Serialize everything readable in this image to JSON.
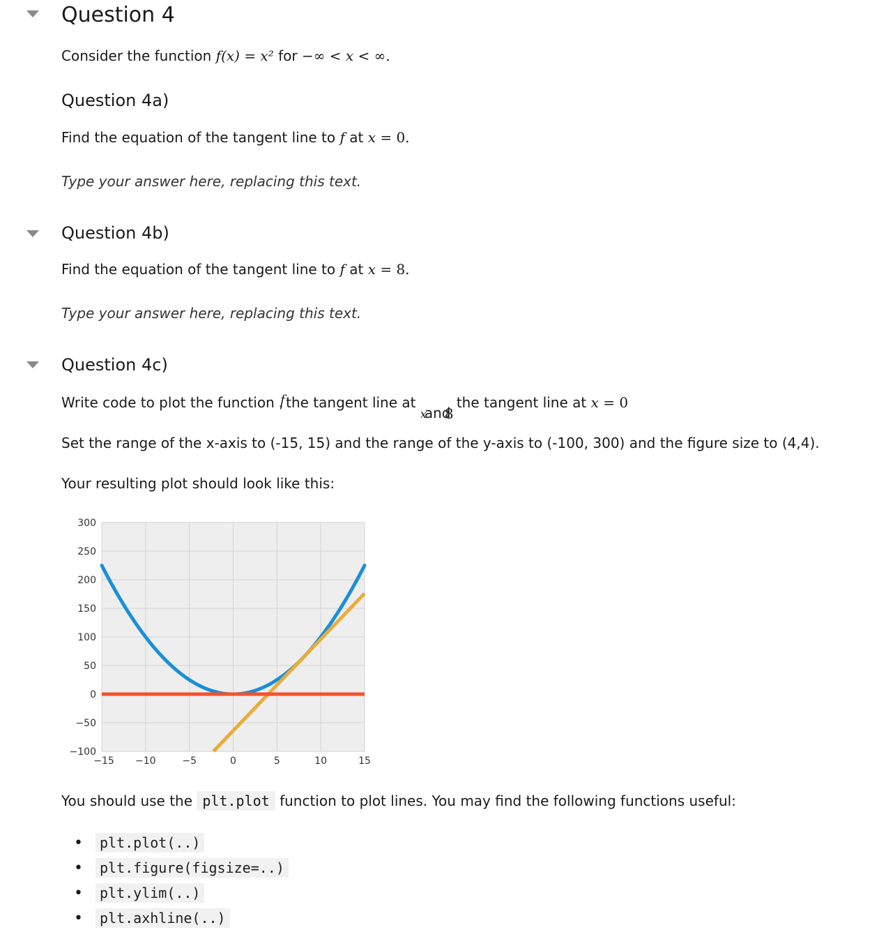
{
  "q4": {
    "title": "Question 4",
    "intro_prefix": "Consider the function ",
    "intro_math": "f(x) = x² ",
    "intro_for": "for ",
    "intro_range": "−∞ < x < ∞."
  },
  "q4a": {
    "title": "Question 4a)",
    "prompt_prefix": "Find the equation of the tangent line to ",
    "prompt_f": "f",
    "prompt_at": " at ",
    "prompt_x": "x",
    "prompt_eq": " = 0.",
    "answer_placeholder": "Type your answer here, replacing this text."
  },
  "q4b": {
    "title": "Question 4b)",
    "prompt_prefix": "Find the equation of the tangent line to ",
    "prompt_f": "f",
    "prompt_at": " at ",
    "prompt_x": "x",
    "prompt_eq": " = 8.",
    "answer_placeholder": "Type your answer here, replacing this text."
  },
  "q4c": {
    "title": "Question 4c)",
    "line1_a": "Write code to plot the function ",
    "line1_f": "f",
    "line1_b": "the tangent line at ",
    "line1_x": "x",
    "line1_and": "and",
    "line1_8": "8",
    "line1_c": "the tangent line at ",
    "line1_x2": "x",
    "line1_eq": " = 0",
    "line2": "Set the range of the x-axis to (-15, 15) and the range of the y-axis to (-100, 300) and the figure size to (4,4).",
    "line3": "Your resulting plot should look like this:",
    "line4_a": "You should use the ",
    "line4_code": "plt.plot",
    "line4_b": " function to plot lines. You may find the following functions useful:",
    "functions": [
      "plt.plot(..)",
      "plt.figure(figsize=..)",
      "plt.ylim(..)",
      "plt.axhline(..)"
    ]
  },
  "chart_data": {
    "type": "line",
    "xlim": [
      -15,
      15
    ],
    "ylim": [
      -100,
      300
    ],
    "x_ticks": [
      -15,
      -10,
      -5,
      0,
      5,
      10,
      15
    ],
    "x_tick_labels": [
      "−15",
      "−10",
      "−5",
      "0",
      "5",
      "10",
      "15"
    ],
    "y_ticks": [
      -100,
      -50,
      0,
      50,
      100,
      150,
      200,
      250,
      300
    ],
    "y_tick_labels": [
      "−100",
      "−50",
      "0",
      "50",
      "100",
      "150",
      "200",
      "250",
      "300"
    ],
    "grid": true,
    "background": "#eeeeee",
    "series": [
      {
        "kind": "function",
        "expr": "x^2",
        "color": "#1a8fd6",
        "x": [
          -15,
          -12,
          -9,
          -6,
          -3,
          0,
          3,
          6,
          9,
          12,
          15
        ],
        "y": [
          225,
          144,
          81,
          36,
          9,
          0,
          9,
          36,
          81,
          144,
          225
        ]
      },
      {
        "kind": "tangent_x8",
        "expr": "16x - 64",
        "color": "#e8ad3a",
        "x": [
          -2.25,
          15
        ],
        "y": [
          -100,
          176
        ]
      },
      {
        "kind": "tangent_x0",
        "expr": "0",
        "color": "#f4512c",
        "x": [
          -15,
          15
        ],
        "y": [
          0,
          0
        ]
      }
    ]
  }
}
